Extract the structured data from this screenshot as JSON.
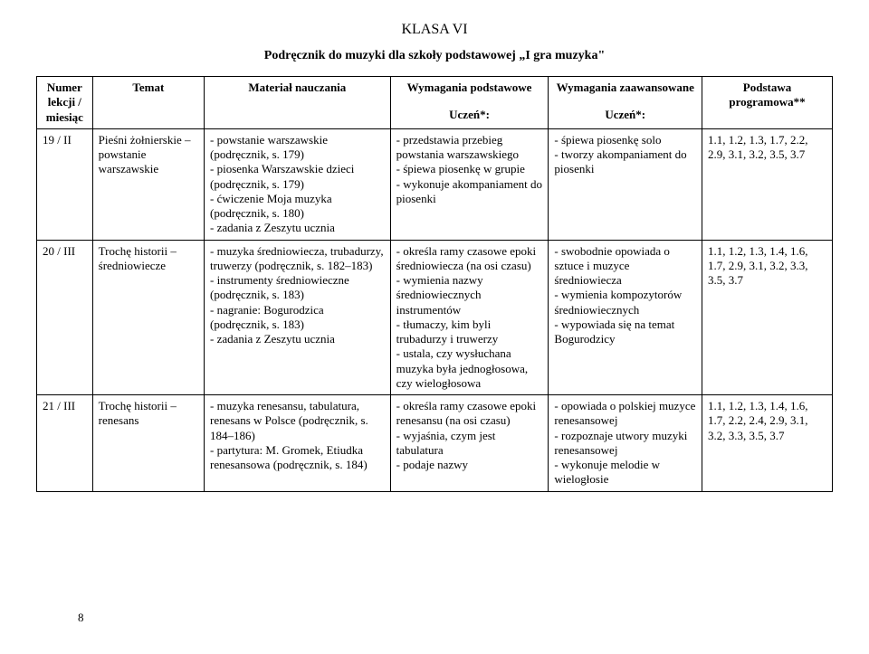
{
  "title": "KLASA VI",
  "subtitle": "Podręcznik do muzyki dla szkoły podstawowej „I gra muzyka\"",
  "page_number": "8",
  "headers": {
    "col0": "Numer lekcji / miesiąc",
    "col1": "Temat",
    "col2": "Materiał nauczania",
    "col3": "Wymagania podstawowe",
    "col3_sub": "Uczeń*:",
    "col4": "Wymagania zaawansowane",
    "col4_sub": "Uczeń*:",
    "col5": "Podstawa programowa**"
  },
  "rows": [
    {
      "num": "19 / II",
      "topic": "Pieśni żołnierskie – powstanie warszawskie",
      "material": "- powstanie warszawskie (podręcznik, s. 179)\n- piosenka Warszawskie dzieci (podręcznik, s. 179)\n- ćwiczenie Moja muzyka (podręcznik, s. 180)\n- zadania z Zeszytu ucznia",
      "basic": "- przedstawia przebieg powstania warszawskiego\n- śpiewa piosenkę w grupie\n- wykonuje akompaniament do piosenki",
      "advanced": "- śpiewa piosenkę solo\n- tworzy akompaniament do piosenki",
      "basis": "1.1, 1.2, 1.3, 1.7, 2.2, 2.9, 3.1, 3.2, 3.5, 3.7"
    },
    {
      "num": "20 / III",
      "topic": "Trochę historii – średniowiecze",
      "material": "- muzyka średniowiecza, trubadurzy, truwerzy (podręcznik, s. 182–183)\n- instrumenty średniowieczne (podręcznik, s. 183)\n- nagranie: Bogurodzica (podręcznik, s. 183)\n- zadania z Zeszytu ucznia",
      "basic": "- określa ramy czasowe epoki średniowiecza (na osi czasu)\n- wymienia nazwy średniowiecznych instrumentów\n- tłumaczy, kim byli trubadurzy i truwerzy\n- ustala, czy wysłuchana muzyka była jednogłosowa, czy wielogłosowa",
      "advanced": "- swobodnie opowiada o sztuce i muzyce średniowiecza\n- wymienia kompozytorów średniowiecznych\n- wypowiada się na temat Bogurodzicy",
      "basis": "1.1, 1.2, 1.3, 1.4, 1.6, 1.7, 2.9, 3.1, 3.2, 3.3, 3.5, 3.7"
    },
    {
      "num": "21 / III",
      "topic": "Trochę historii – renesans",
      "material": "- muzyka renesansu, tabulatura, renesans w Polsce (podręcznik, s. 184–186)\n- partytura: M. Gromek, Etiudka renesansowa (podręcznik, s. 184)",
      "basic": "- określa ramy czasowe epoki renesansu (na osi czasu)\n- wyjaśnia, czym jest tabulatura\n- podaje nazwy",
      "advanced": "- opowiada o polskiej muzyce renesansowej\n- rozpoznaje utwory muzyki renesansowej\n- wykonuje melodie w wielogłosie",
      "basis": "1.1, 1.2, 1.3, 1.4, 1.6, 1.7, 2.2, 2.4, 2.9, 3.1, 3.2, 3.3, 3.5, 3.7"
    }
  ]
}
